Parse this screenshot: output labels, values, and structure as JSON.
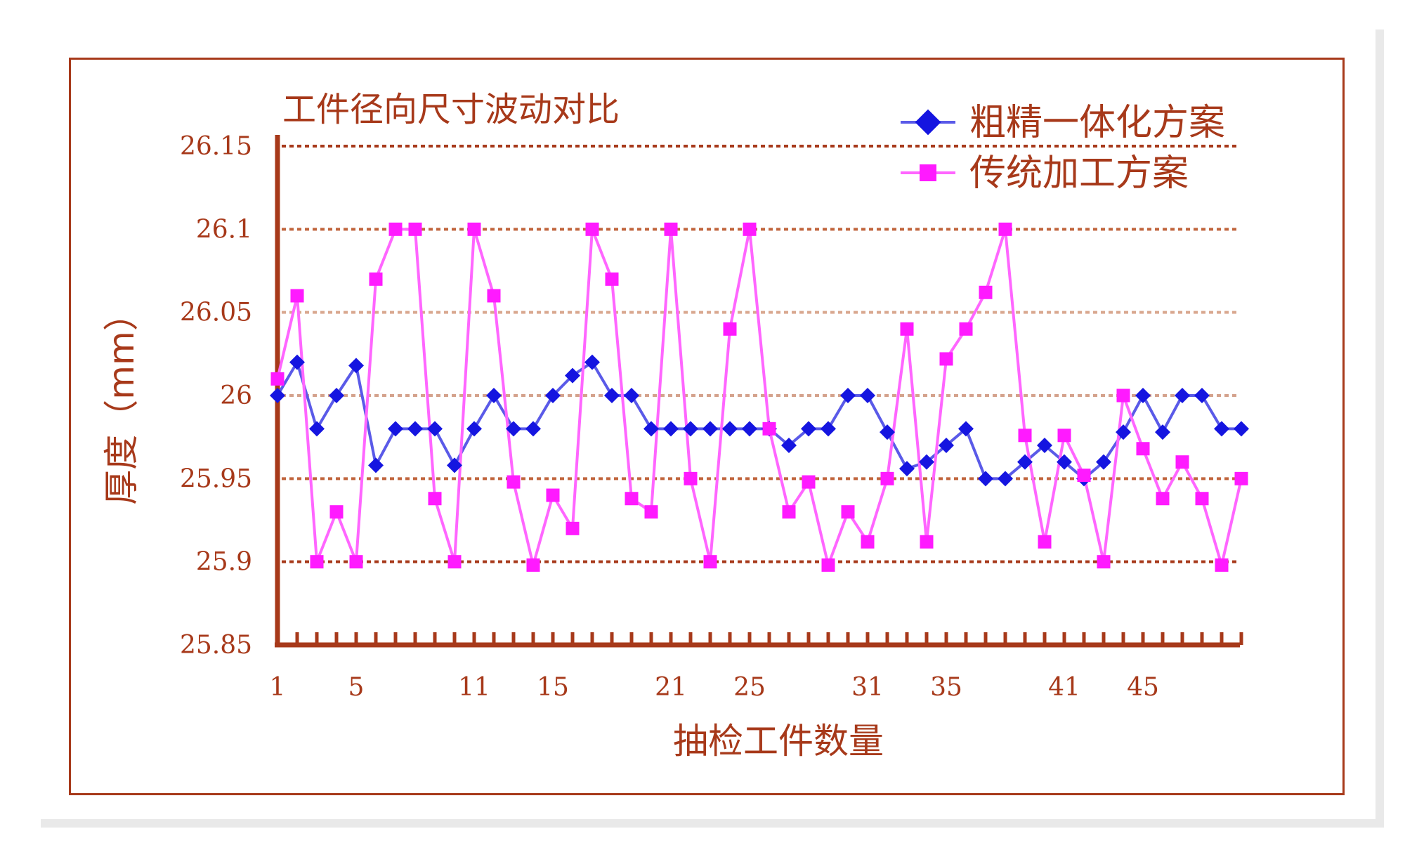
{
  "chart_data": {
    "type": "line",
    "title": "工件径向尺寸波动对比",
    "xlabel": "抽检工件数量",
    "ylabel": "厚度（mm）",
    "x": [
      1,
      2,
      3,
      4,
      5,
      6,
      7,
      8,
      9,
      10,
      11,
      12,
      13,
      14,
      15,
      16,
      17,
      18,
      19,
      20,
      21,
      22,
      23,
      24,
      25,
      26,
      27,
      28,
      29,
      30,
      31,
      32,
      33,
      34,
      35,
      36,
      37,
      38,
      39,
      40,
      41,
      42,
      43,
      44,
      45,
      46,
      47,
      48,
      49,
      50
    ],
    "x_tick_labels": [
      "1",
      "5",
      "11",
      "15",
      "21",
      "25",
      "31",
      "35",
      "41",
      "45"
    ],
    "y_tick_labels": [
      "25.85",
      "25.9",
      "25.95",
      "26",
      "26.05",
      "26.1",
      "26.15"
    ],
    "ylim": [
      25.85,
      26.15
    ],
    "grid": true,
    "legend_position": "top-right",
    "series": [
      {
        "name": "粗精一体化方案",
        "color": "#1515e0",
        "line_color": "#5a5ae8",
        "marker": "diamond",
        "values": [
          26.0,
          26.02,
          25.98,
          26.0,
          26.018,
          25.958,
          25.98,
          25.98,
          25.98,
          25.958,
          25.98,
          26.0,
          25.98,
          25.98,
          26.0,
          26.012,
          26.02,
          26.0,
          26.0,
          25.98,
          25.98,
          25.98,
          25.98,
          25.98,
          25.98,
          25.98,
          25.97,
          25.98,
          25.98,
          26.0,
          26.0,
          25.978,
          25.956,
          25.96,
          25.97,
          25.98,
          25.95,
          25.95,
          25.96,
          25.97,
          25.96,
          25.95,
          25.96,
          25.978,
          26.0,
          25.978,
          26.0,
          26.0,
          25.98,
          25.98
        ]
      },
      {
        "name": "传统加工方案",
        "color": "#ff1aff",
        "line_color": "#ff66ff",
        "marker": "square",
        "values": [
          26.01,
          26.06,
          25.9,
          25.93,
          25.9,
          26.07,
          26.1,
          26.1,
          25.938,
          25.9,
          26.1,
          26.06,
          25.948,
          25.898,
          25.94,
          25.92,
          26.1,
          26.07,
          25.938,
          25.93,
          26.1,
          25.95,
          25.9,
          26.04,
          26.1,
          25.98,
          25.93,
          25.948,
          25.898,
          25.93,
          25.912,
          25.95,
          26.04,
          25.912,
          26.022,
          26.04,
          26.062,
          26.1,
          25.976,
          25.912,
          25.976,
          25.952,
          25.9,
          26.0,
          25.968,
          25.938,
          25.96,
          25.938,
          25.898,
          25.95
        ]
      }
    ]
  }
}
